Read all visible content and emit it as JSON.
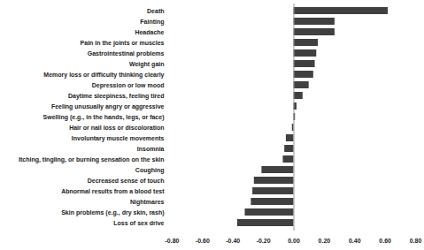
{
  "chart_data": {
    "type": "bar",
    "orientation": "horizontal",
    "color": "#404040",
    "grid": false,
    "categories": [
      "Death",
      "Fainting",
      "Headache",
      "Pain in the joints or muscles",
      "Gastrointestinal problems",
      "Weight gain",
      "Memory loss or difficulty thinking clearly",
      "Depression or low mood",
      "Daytime sleepiness, feeling tired",
      "Feeling unusually angry or aggressive",
      "Swelling (e.g., in the hands, legs, or face)",
      "Hair or nail loss or discoloration",
      "Involuntary muscle movements",
      "Insomnia",
      "Itching, tingling, or burning sensation on the skin",
      "Coughing",
      "Decreased sense of touch",
      "Abnormal results from a blood test",
      "Nightmares",
      "Skin problems (e.g., dry skin, rash)",
      "Loss of sex drive"
    ],
    "values": [
      0.62,
      0.27,
      0.27,
      0.16,
      0.15,
      0.14,
      0.13,
      0.1,
      0.06,
      0.02,
      0.01,
      -0.01,
      -0.05,
      -0.06,
      -0.07,
      -0.21,
      -0.26,
      -0.27,
      -0.28,
      -0.32,
      -0.37
    ],
    "xlim": [
      -0.8,
      0.8
    ],
    "xticks": [
      {
        "value": -0.8,
        "label": "-0.80"
      },
      {
        "value": -0.6,
        "label": "-0.60"
      },
      {
        "value": -0.4,
        "label": "-0.40"
      },
      {
        "value": -0.2,
        "label": "-0.20"
      },
      {
        "value": 0,
        "label": "0.00"
      },
      {
        "value": 0.2,
        "label": "0.20"
      },
      {
        "value": 0.4,
        "label": "0.40"
      },
      {
        "value": 0.6,
        "label": "0.60"
      },
      {
        "value": 0.8,
        "label": "0.80"
      }
    ]
  }
}
